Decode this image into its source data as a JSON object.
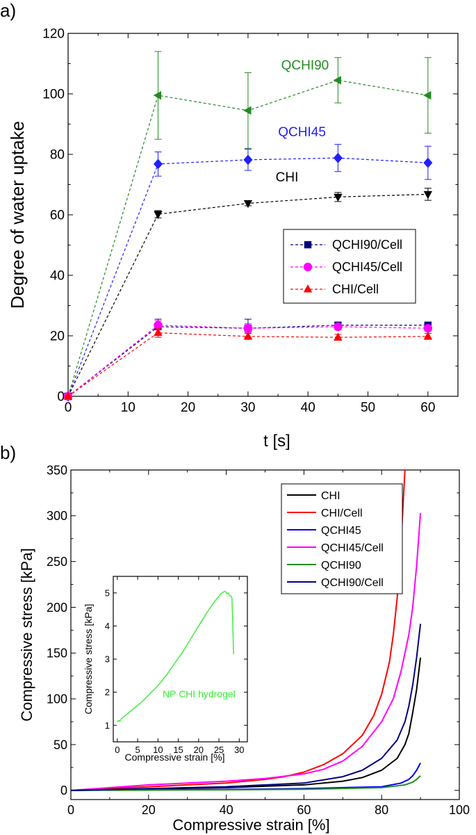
{
  "chart_data": [
    {
      "type": "line",
      "panel_label": "a)",
      "xlabel": "t [s]",
      "ylabel": "Degree of water uptake",
      "xlim": [
        0,
        65
      ],
      "ylim": [
        0,
        120
      ],
      "xticks": [
        0,
        10,
        20,
        30,
        40,
        50,
        60
      ],
      "yticks": [
        0,
        20,
        40,
        60,
        80,
        100,
        120
      ],
      "x": [
        0,
        15,
        30,
        45,
        60
      ],
      "series": [
        {
          "name": "QCHI90",
          "color": "#228b22",
          "marker": "triangle-left",
          "values": [
            0,
            99.5,
            94.5,
            104.5,
            99.5
          ],
          "err": [
            0,
            14.5,
            12.5,
            7.5,
            12.5
          ],
          "in_legend": false
        },
        {
          "name": "QCHI45",
          "color": "#1f1fff",
          "marker": "diamond",
          "values": [
            0,
            76.8,
            78.2,
            78.8,
            77.2
          ],
          "err": [
            0,
            4,
            3.5,
            4.5,
            5.5
          ],
          "in_legend": false
        },
        {
          "name": "CHI",
          "color": "#000000",
          "marker": "triangle-down",
          "values": [
            0,
            60.2,
            63.8,
            65.9,
            66.8
          ],
          "err": [
            0,
            1.2,
            0.8,
            1.5,
            2
          ],
          "in_legend": false
        },
        {
          "name": "QCHI90/Cell",
          "color": "#00007f",
          "marker": "square",
          "values": [
            0,
            23,
            22.5,
            23.5,
            23.5
          ],
          "err": [
            0,
            2.5,
            3,
            1,
            1
          ],
          "in_legend": true
        },
        {
          "name": "QCHI45/Cell",
          "color": "#ff00ff",
          "marker": "circle",
          "values": [
            0,
            23.5,
            22.5,
            23,
            22.5
          ],
          "err": [
            0,
            1.5,
            1.5,
            1,
            1
          ],
          "in_legend": true
        },
        {
          "name": "CHI/Cell",
          "color": "#ff0000",
          "marker": "triangle-up",
          "values": [
            0,
            21,
            19.8,
            19.5,
            19.8
          ],
          "err": [
            0,
            1.5,
            1,
            1,
            1
          ],
          "in_legend": true
        }
      ],
      "annotations": [
        {
          "text": "QCHI90",
          "x": 39.5,
          "y": 108,
          "color": "#228b22"
        },
        {
          "text": "QCHI45",
          "x": 39,
          "y": 86,
          "color": "#1f1fff"
        },
        {
          "text": "CHI",
          "x": 36.5,
          "y": 71,
          "color": "#000000"
        }
      ],
      "legend": "center-right"
    },
    {
      "type": "line",
      "panel_label": "b)",
      "xlabel": "Compressive strain [%]",
      "ylabel": "Compressive stress [kPa]",
      "xlim": [
        0,
        100
      ],
      "ylim": [
        -10,
        350
      ],
      "xticks": [
        0,
        20,
        40,
        60,
        80,
        100
      ],
      "yticks": [
        0,
        50,
        100,
        150,
        200,
        250,
        300,
        350
      ],
      "series": [
        {
          "name": "CHI",
          "color": "#000000",
          "x": [
            0,
            20,
            40,
            60,
            70,
            75,
            80,
            84,
            86,
            87,
            88,
            89,
            90
          ],
          "y": [
            0,
            1.5,
            3,
            6,
            10,
            14,
            22,
            35,
            50,
            62,
            85,
            110,
            145
          ]
        },
        {
          "name": "CHI/Cell",
          "color": "#ff0000",
          "x": [
            0,
            20,
            40,
            50,
            55,
            60,
            65,
            70,
            75,
            78,
            80,
            82,
            83,
            84,
            85,
            86
          ],
          "y": [
            0,
            4,
            8,
            12,
            15,
            20,
            28,
            40,
            60,
            82,
            105,
            140,
            170,
            210,
            270,
            350
          ]
        },
        {
          "name": "QCHI45",
          "color": "#0000ff",
          "x": [
            0,
            20,
            40,
            60,
            80,
            85,
            87,
            88,
            89,
            90
          ],
          "y": [
            0,
            0.5,
            1,
            2,
            4,
            8,
            12,
            16,
            22,
            30
          ]
        },
        {
          "name": "QCHI45/Cell",
          "color": "#ff00ff",
          "x": [
            0,
            20,
            40,
            50,
            60,
            65,
            70,
            75,
            80,
            83,
            85,
            87,
            88,
            89,
            90
          ],
          "y": [
            0,
            6,
            10,
            13,
            18,
            23,
            32,
            48,
            75,
            100,
            130,
            170,
            200,
            245,
            303
          ]
        },
        {
          "name": "QCHI90",
          "color": "#228b22",
          "x": [
            0,
            20,
            40,
            60,
            80,
            86,
            88,
            89,
            90
          ],
          "y": [
            0,
            0.3,
            0.6,
            1.2,
            3,
            6,
            9,
            12,
            16
          ]
        },
        {
          "name": "QCHI90/Cell",
          "color": "#00007f",
          "x": [
            0,
            20,
            40,
            60,
            70,
            75,
            80,
            84,
            86,
            87,
            88,
            89,
            90
          ],
          "y": [
            0,
            2,
            4,
            8,
            15,
            22,
            35,
            55,
            75,
            92,
            115,
            145,
            182
          ]
        }
      ],
      "legend": "top-right",
      "inset": {
        "type": "line",
        "xlabel": "Compressive strain [%]",
        "ylabel": "Compressive stress [kPa]",
        "xlim": [
          -1,
          32
        ],
        "ylim": [
          0.5,
          5.5
        ],
        "xticks": [
          0,
          5,
          10,
          15,
          20,
          25,
          30
        ],
        "yticks": [
          1,
          2,
          3,
          4,
          5
        ],
        "annotation": "NP CHI hydrogel",
        "series": [
          {
            "name": "NP CHI hydrogel",
            "color": "#33ee33",
            "x": [
              0,
              0.3,
              0.6,
              1,
              2,
              4,
              6,
              8,
              10,
              12,
              14,
              16,
              18,
              20,
              22,
              24,
              25,
              25.5,
              26,
              26.5,
              27,
              27.3,
              27.6,
              28,
              28.2,
              28.4,
              28.6
            ],
            "y": [
              1.1,
              1.15,
              1.12,
              1.2,
              1.3,
              1.5,
              1.7,
              1.95,
              2.2,
              2.5,
              2.85,
              3.2,
              3.6,
              4.0,
              4.4,
              4.75,
              4.9,
              4.98,
              5.02,
              5.05,
              4.98,
              5.0,
              4.92,
              4.9,
              4.85,
              4.1,
              3.15
            ]
          }
        ]
      }
    }
  ]
}
